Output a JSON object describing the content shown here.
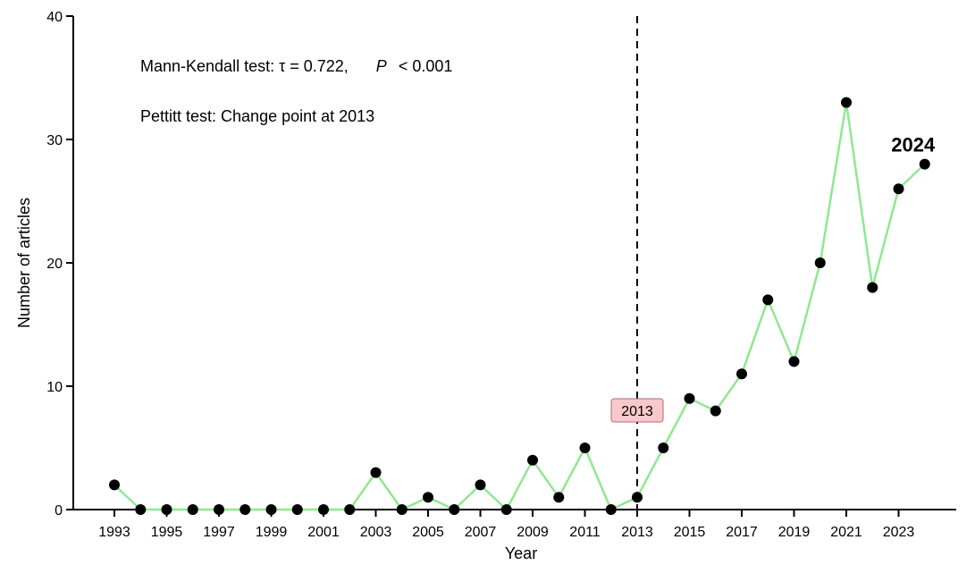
{
  "chart_data": {
    "type": "line",
    "xlabel": "Year",
    "ylabel": "Number of articles",
    "xlim": [
      1992.5,
      2025
    ],
    "ylim": [
      0,
      40
    ],
    "y_ticks": [
      0,
      10,
      20,
      30,
      40
    ],
    "x_ticks": [
      1993,
      1995,
      1997,
      1999,
      2001,
      2003,
      2005,
      2007,
      2009,
      2011,
      2013,
      2015,
      2017,
      2019,
      2021,
      2023
    ],
    "grid": false,
    "x": [
      1993,
      1994,
      1995,
      1996,
      1997,
      1998,
      1999,
      2000,
      2001,
      2002,
      2003,
      2004,
      2005,
      2006,
      2007,
      2008,
      2009,
      2010,
      2011,
      2012,
      2013,
      2014,
      2015,
      2016,
      2017,
      2018,
      2019,
      2020,
      2021,
      2022,
      2023,
      2024
    ],
    "series": [
      {
        "values": [
          2,
          0,
          0,
          0,
          0,
          0,
          0,
          0,
          0,
          0,
          3,
          0,
          1,
          0,
          2,
          0,
          4,
          1,
          5,
          0,
          1,
          5,
          9,
          8,
          11,
          17,
          12,
          20,
          33,
          18,
          26,
          28
        ],
        "line_color": "#90e890",
        "marker_color": "#000000"
      }
    ],
    "annotations": {
      "mk_prefix": "Mann-Kendall test: τ = 0.722,",
      "mk_p": "P",
      "mk_suffix": "< 0.001",
      "pettitt": "Pettitt test: Change point at 2013",
      "change_point_year": 2013,
      "change_point_label": "2013",
      "change_point_box_color": "#f8c8cc",
      "last_point_label": "2024"
    }
  }
}
